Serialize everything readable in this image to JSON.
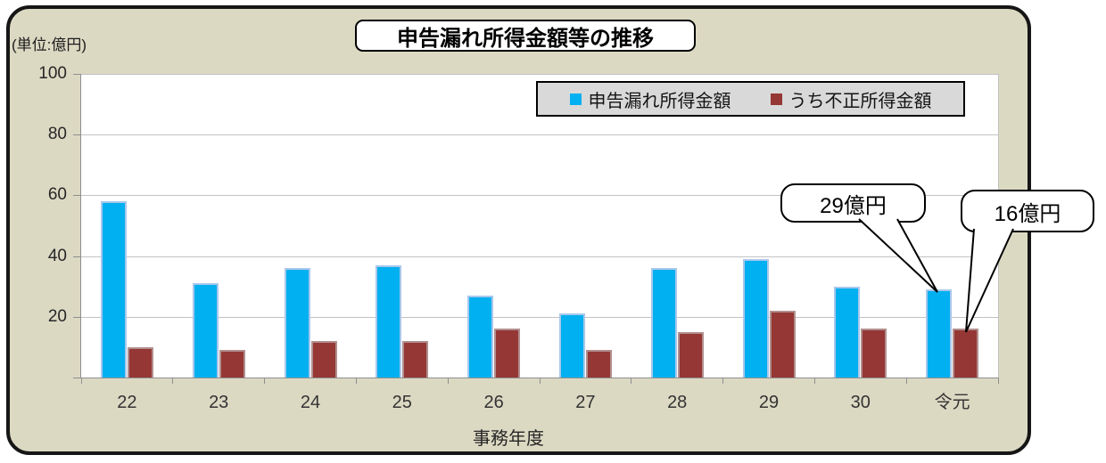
{
  "chart": {
    "unit_label": "(単位:億円)",
    "title": "申告漏れ所得金額等の推移",
    "xaxis_title": "事務年度",
    "callouts": [
      {
        "text": "29億円"
      },
      {
        "text": "16億円"
      }
    ]
  },
  "chart_data": {
    "type": "bar",
    "title": "申告漏れ所得金額等の推移",
    "categories": [
      "22",
      "23",
      "24",
      "25",
      "26",
      "27",
      "28",
      "29",
      "30",
      "令元"
    ],
    "series": [
      {
        "name": "申告漏れ所得金額",
        "color": "#00B0F0",
        "border_color": "#A8C7EC",
        "values": [
          58,
          31,
          36,
          37,
          27,
          21,
          36,
          39,
          30,
          29
        ]
      },
      {
        "name": "うち不正所得金額",
        "color": "#953735",
        "border_color": "#B18F8E",
        "values": [
          10,
          9,
          12,
          12,
          16,
          9,
          15,
          22,
          16,
          16
        ]
      }
    ],
    "xlabel": "事務年度",
    "ylabel": "(単位:億円)",
    "ylim": [
      0,
      100
    ],
    "yticks": [
      20,
      40,
      60,
      80,
      100
    ],
    "grid": true,
    "legend_position": "top-right",
    "plot_background": "#ffffff",
    "chart_background": "#DCD9C3",
    "annotations": [
      {
        "text": "29億円",
        "series": 0,
        "category": "令元",
        "value": 29
      },
      {
        "text": "16億円",
        "series": 1,
        "category": "令元",
        "value": 16
      }
    ]
  }
}
